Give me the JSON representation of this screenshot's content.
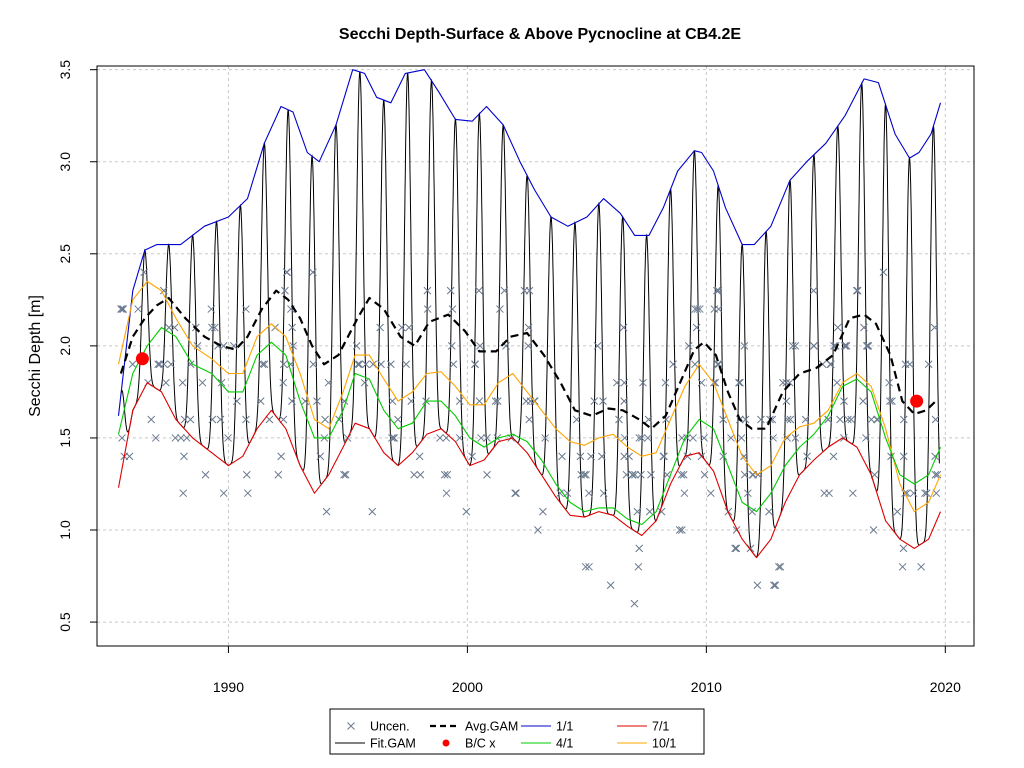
{
  "chart_data": {
    "type": "line",
    "title": "Secchi Depth-Surface & Above Pycnocline at CB4.2E",
    "xlabel": "",
    "ylabel": "Secchi Depth [m]",
    "xlim": [
      1984.5,
      2021.2
    ],
    "ylim": [
      0.37,
      3.52
    ],
    "x_ticks": [
      1990,
      2000,
      2010,
      2020
    ],
    "y_ticks": [
      0.5,
      1.0,
      1.5,
      2.0,
      2.5,
      3.0,
      3.5
    ],
    "x_tick_labels": [
      "1990",
      "2000",
      "2010",
      "2020"
    ],
    "y_tick_labels": [
      "0.5",
      "1.0",
      "1.5",
      "2.0",
      "2.5",
      "3.0",
      "3.5"
    ],
    "grid": true,
    "legend_position": "bottom",
    "legend": [
      {
        "label": "Uncen.",
        "type": "x",
        "color": "#6b7a8f"
      },
      {
        "label": "Fit.GAM",
        "type": "line",
        "color": "#000000"
      },
      {
        "label": "Avg.GAM",
        "type": "dash",
        "color": "#000000"
      },
      {
        "label": "B/C x",
        "type": "dot",
        "color": "#ff0000"
      },
      {
        "label": "1/1",
        "type": "line",
        "color": "#0000cc"
      },
      {
        "label": "4/1",
        "type": "line",
        "color": "#00cc00"
      },
      {
        "label": "7/1",
        "type": "line",
        "color": "#dd0000"
      },
      {
        "label": "10/1",
        "type": "line",
        "color": "#ffa500"
      }
    ],
    "series": [
      {
        "name": "1/1",
        "color": "#0000cc",
        "x": [
          1985.4,
          1986.0,
          1986.5,
          1987.0,
          1988.0,
          1989.0,
          1990.0,
          1990.8,
          1991.5,
          1992.2,
          1992.7,
          1993.3,
          1993.8,
          1994.5,
          1995.2,
          1995.7,
          1996.2,
          1996.8,
          1997.4,
          1998.2,
          1998.8,
          1999.5,
          2000.2,
          2000.8,
          2001.5,
          2002.2,
          2002.8,
          2003.5,
          2004.2,
          2005.0,
          2005.7,
          2006.4,
          2007.0,
          2007.6,
          2008.2,
          2008.8,
          2009.5,
          2009.8,
          2010.3,
          2010.8,
          2011.5,
          2012.0,
          2012.7,
          2013.5,
          2014.2,
          2015.0,
          2015.8,
          2016.6,
          2017.2,
          2017.9,
          2018.5,
          2018.9,
          2019.4,
          2019.8
        ],
        "y": [
          1.62,
          2.3,
          2.52,
          2.55,
          2.55,
          2.65,
          2.7,
          2.8,
          3.1,
          3.3,
          3.27,
          3.05,
          3.0,
          3.2,
          3.5,
          3.48,
          3.35,
          3.32,
          3.48,
          3.5,
          3.38,
          3.23,
          3.22,
          3.3,
          3.2,
          3.0,
          2.85,
          2.7,
          2.65,
          2.7,
          2.8,
          2.72,
          2.6,
          2.6,
          2.75,
          2.95,
          3.06,
          3.05,
          2.95,
          2.75,
          2.55,
          2.55,
          2.65,
          2.9,
          3.0,
          3.1,
          3.25,
          3.45,
          3.43,
          3.15,
          3.02,
          3.05,
          3.15,
          3.32
        ]
      },
      {
        "name": "Avg.GAM",
        "color": "#000000",
        "dash": true,
        "x": [
          1985.5,
          1986.0,
          1986.5,
          1987.0,
          1987.5,
          1988.2,
          1989.0,
          1989.7,
          1990.3,
          1990.8,
          1991.4,
          1992.0,
          1992.5,
          1993.0,
          1993.5,
          1994.0,
          1994.6,
          1995.4,
          1995.9,
          1996.5,
          1997.2,
          1997.8,
          1998.4,
          1999.2,
          1999.9,
          2000.5,
          2001.2,
          2001.8,
          2002.5,
          2003.2,
          2003.9,
          2004.5,
          2005.2,
          2005.9,
          2006.5,
          2007.2,
          2007.7,
          2008.3,
          2008.9,
          2009.5,
          2009.9,
          2010.4,
          2010.9,
          2011.4,
          2011.9,
          2012.5,
          2013.2,
          2013.9,
          2014.6,
          2015.3,
          2016.0,
          2016.6,
          2017.1,
          2017.7,
          2018.2,
          2018.7,
          2019.2,
          2019.6
        ],
        "y": [
          1.85,
          2.05,
          2.15,
          2.22,
          2.26,
          2.15,
          2.05,
          2.0,
          1.98,
          2.05,
          2.2,
          2.3,
          2.25,
          2.15,
          2.0,
          1.9,
          1.95,
          2.15,
          2.26,
          2.2,
          2.05,
          2.0,
          2.13,
          2.17,
          2.08,
          1.97,
          1.97,
          2.05,
          2.07,
          1.95,
          1.8,
          1.65,
          1.62,
          1.66,
          1.65,
          1.6,
          1.55,
          1.62,
          1.8,
          1.98,
          2.02,
          1.95,
          1.75,
          1.6,
          1.55,
          1.55,
          1.75,
          1.85,
          1.88,
          1.95,
          2.15,
          2.17,
          2.12,
          1.95,
          1.7,
          1.63,
          1.65,
          1.7
        ]
      },
      {
        "name": "10/1",
        "color": "#ffa500",
        "x": [
          1985.4,
          1986.0,
          1986.6,
          1987.2,
          1987.8,
          1988.5,
          1989.3,
          1990.0,
          1990.6,
          1991.2,
          1991.8,
          1992.4,
          1993.0,
          1993.6,
          1994.2,
          1994.8,
          1995.3,
          1995.9,
          1996.5,
          1997.1,
          1997.7,
          1998.3,
          1998.9,
          1999.5,
          2000.1,
          2000.7,
          2001.3,
          2001.9,
          2002.5,
          2003.1,
          2003.7,
          2004.3,
          2004.9,
          2005.5,
          2006.1,
          2006.7,
          2007.3,
          2007.9,
          2008.5,
          2009.1,
          2009.7,
          2010.3,
          2010.9,
          2011.5,
          2012.1,
          2012.7,
          2013.3,
          2013.9,
          2014.5,
          2015.1,
          2015.7,
          2016.3,
          2016.9,
          2017.5,
          2018.1,
          2018.7,
          2019.3,
          2019.8
        ],
        "y": [
          1.9,
          2.25,
          2.35,
          2.3,
          2.15,
          2.0,
          1.93,
          1.85,
          1.85,
          2.05,
          2.12,
          2.05,
          1.85,
          1.6,
          1.55,
          1.75,
          1.95,
          1.95,
          1.82,
          1.7,
          1.75,
          1.85,
          1.86,
          1.78,
          1.68,
          1.68,
          1.8,
          1.85,
          1.75,
          1.65,
          1.55,
          1.48,
          1.46,
          1.5,
          1.52,
          1.45,
          1.4,
          1.42,
          1.6,
          1.78,
          1.9,
          1.8,
          1.6,
          1.4,
          1.3,
          1.35,
          1.5,
          1.56,
          1.58,
          1.65,
          1.8,
          1.85,
          1.78,
          1.55,
          1.25,
          1.1,
          1.15,
          1.3
        ]
      },
      {
        "name": "4/1",
        "color": "#00cc00",
        "x": [
          1985.4,
          1986.0,
          1986.6,
          1987.2,
          1987.8,
          1988.5,
          1989.3,
          1990.0,
          1990.6,
          1991.2,
          1991.8,
          1992.4,
          1993.0,
          1993.6,
          1994.2,
          1994.8,
          1995.3,
          1995.9,
          1996.5,
          1997.1,
          1997.7,
          1998.3,
          1998.9,
          1999.5,
          2000.1,
          2000.7,
          2001.3,
          2001.9,
          2002.5,
          2003.1,
          2003.7,
          2004.3,
          2004.9,
          2005.5,
          2006.1,
          2006.7,
          2007.3,
          2007.9,
          2008.5,
          2009.1,
          2009.7,
          2010.3,
          2010.9,
          2011.5,
          2012.1,
          2012.7,
          2013.3,
          2013.9,
          2014.5,
          2015.1,
          2015.7,
          2016.3,
          2016.9,
          2017.5,
          2018.1,
          2018.7,
          2019.3,
          2019.8
        ],
        "y": [
          1.52,
          1.85,
          2.0,
          2.1,
          2.05,
          1.9,
          1.85,
          1.75,
          1.75,
          1.95,
          2.02,
          1.95,
          1.7,
          1.5,
          1.5,
          1.65,
          1.85,
          1.82,
          1.65,
          1.55,
          1.58,
          1.7,
          1.7,
          1.62,
          1.5,
          1.45,
          1.5,
          1.52,
          1.48,
          1.38,
          1.25,
          1.15,
          1.1,
          1.12,
          1.12,
          1.06,
          1.03,
          1.1,
          1.3,
          1.5,
          1.6,
          1.55,
          1.35,
          1.15,
          1.1,
          1.2,
          1.35,
          1.45,
          1.52,
          1.62,
          1.78,
          1.82,
          1.75,
          1.5,
          1.3,
          1.25,
          1.3,
          1.45
        ]
      },
      {
        "name": "7/1",
        "color": "#dd0000",
        "x": [
          1985.4,
          1986.0,
          1986.6,
          1987.2,
          1987.8,
          1988.5,
          1989.3,
          1990.0,
          1990.6,
          1991.2,
          1991.8,
          1992.4,
          1993.0,
          1993.6,
          1994.2,
          1994.8,
          1995.3,
          1995.9,
          1996.5,
          1997.1,
          1997.7,
          1998.3,
          1998.9,
          1999.5,
          2000.1,
          2000.7,
          2001.3,
          2001.9,
          2002.5,
          2003.1,
          2003.7,
          2004.3,
          2004.9,
          2005.5,
          2006.1,
          2006.7,
          2007.3,
          2007.9,
          2008.5,
          2009.1,
          2009.7,
          2010.3,
          2010.9,
          2011.5,
          2012.1,
          2012.7,
          2013.3,
          2013.9,
          2014.5,
          2015.1,
          2015.7,
          2016.3,
          2016.9,
          2017.5,
          2018.1,
          2018.7,
          2019.3,
          2019.8
        ],
        "y": [
          1.23,
          1.65,
          1.8,
          1.75,
          1.6,
          1.5,
          1.42,
          1.35,
          1.4,
          1.55,
          1.65,
          1.55,
          1.35,
          1.2,
          1.3,
          1.45,
          1.58,
          1.55,
          1.42,
          1.35,
          1.42,
          1.52,
          1.55,
          1.48,
          1.35,
          1.38,
          1.48,
          1.5,
          1.42,
          1.3,
          1.18,
          1.08,
          1.07,
          1.1,
          1.08,
          1.02,
          0.97,
          1.05,
          1.25,
          1.4,
          1.42,
          1.32,
          1.1,
          0.95,
          0.85,
          0.95,
          1.15,
          1.3,
          1.38,
          1.45,
          1.5,
          1.45,
          1.3,
          1.05,
          0.95,
          0.9,
          0.95,
          1.1
        ]
      },
      {
        "name": "B/C x",
        "type": "points",
        "color": "#ff0000",
        "x": [
          1986.4,
          2018.8
        ],
        "y": [
          1.93,
          1.7
        ]
      }
    ]
  }
}
